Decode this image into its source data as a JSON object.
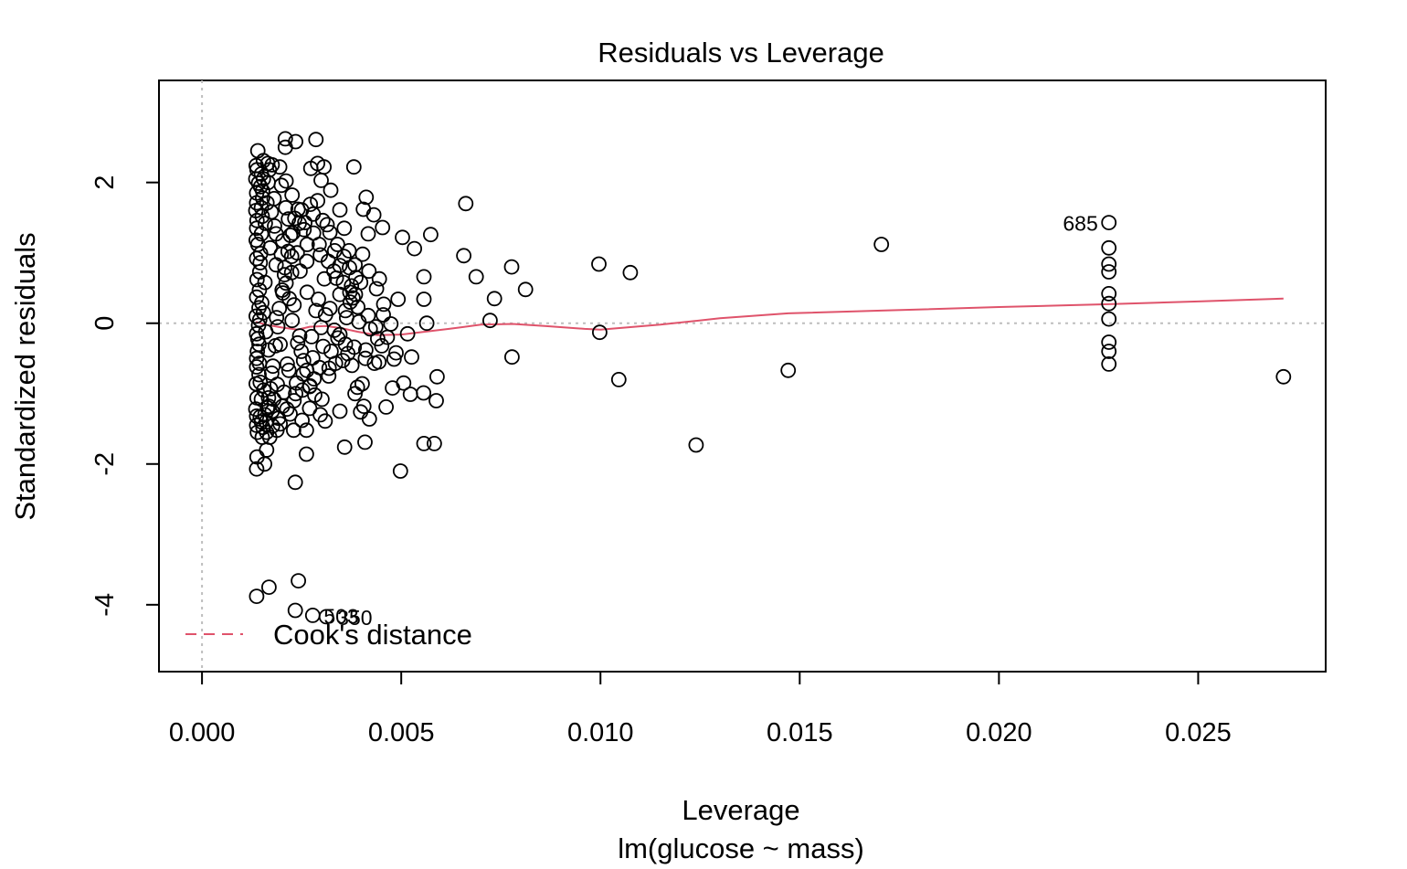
{
  "chart_data": {
    "type": "scatter",
    "title": "Residuals vs Leverage",
    "xlabel": "Leverage",
    "sub_xlabel": "lm(glucose ~ mass)",
    "ylabel": "Standardized residuals",
    "xlim": [
      -0.00108,
      0.0282
    ],
    "ylim": [
      -4.95,
      3.45
    ],
    "xticks": [
      0,
      0.005,
      0.01,
      0.015,
      0.02,
      0.025
    ],
    "xtick_labels": [
      "0.000",
      "0.005",
      "0.010",
      "0.015",
      "0.020",
      "0.025"
    ],
    "yticks": [
      -4,
      -2,
      0,
      2
    ],
    "ytick_labels": [
      "-4",
      "-2",
      "0",
      "2"
    ],
    "reference_lines": {
      "x": 0,
      "y": 0
    },
    "legend": {
      "position": "bottom-left",
      "label": "Cook's distance",
      "color": "#DF536B"
    },
    "colors": {
      "points": "#000000",
      "smoother": "#DF536B",
      "reference": "#BEBEBE"
    },
    "points": [
      [
        0.00137,
        -3.88
      ],
      [
        0.00168,
        -3.75
      ],
      [
        0.00242,
        -3.66
      ],
      [
        0.00234,
        -4.08
      ],
      [
        0.00278,
        -4.15
      ],
      [
        0.00312,
        -4.17
      ],
      [
        0.00262,
        -1.86
      ],
      [
        0.00234,
        -2.26
      ],
      [
        0.00498,
        -2.1
      ],
      [
        0.00137,
        -2.07
      ],
      [
        0.00157,
        -2.0
      ],
      [
        0.00138,
        -1.9
      ],
      [
        0.00162,
        -1.8
      ],
      [
        0.00358,
        -1.76
      ],
      [
        0.00409,
        -1.69
      ],
      [
        0.00557,
        -1.71
      ],
      [
        0.00583,
        -1.71
      ],
      [
        0.0124,
        -1.73
      ],
      [
        0.00778,
        -0.48
      ],
      [
        0.00998,
        -0.13
      ],
      [
        0.01046,
        -0.8
      ],
      [
        0.01471,
        -0.67
      ],
      [
        0.02714,
        -0.76
      ],
      [
        0.00723,
        0.04
      ],
      [
        0.00734,
        0.35
      ],
      [
        0.00688,
        0.66
      ],
      [
        0.00657,
        0.96
      ],
      [
        0.00777,
        0.8
      ],
      [
        0.00812,
        0.48
      ],
      [
        0.00996,
        0.84
      ],
      [
        0.01075,
        0.72
      ],
      [
        0.00662,
        1.7
      ],
      [
        0.00574,
        1.26
      ],
      [
        0.01705,
        1.12
      ],
      [
        0.02276,
        1.43
      ],
      [
        0.02276,
        1.07
      ],
      [
        0.02276,
        0.84
      ],
      [
        0.02276,
        0.73
      ],
      [
        0.02276,
        0.42
      ],
      [
        0.02276,
        0.28
      ],
      [
        0.02276,
        0.06
      ],
      [
        0.02276,
        -0.27
      ],
      [
        0.02276,
        -0.4
      ],
      [
        0.02276,
        -0.58
      ],
      [
        0.00564,
        0.0
      ],
      [
        0.00557,
        0.34
      ],
      [
        0.00557,
        0.66
      ],
      [
        0.00533,
        1.06
      ],
      [
        0.00503,
        1.22
      ],
      [
        0.00516,
        -0.15
      ],
      [
        0.00526,
        -0.48
      ],
      [
        0.00506,
        -0.85
      ],
      [
        0.00523,
        -1.01
      ],
      [
        0.00556,
        -0.99
      ],
      [
        0.0059,
        -0.76
      ],
      [
        0.00588,
        -1.1
      ],
      [
        0.00462,
        -1.19
      ],
      [
        0.00433,
        -0.57
      ],
      [
        0.00478,
        -0.92
      ],
      [
        0.00492,
        0.34
      ],
      [
        0.00445,
        0.63
      ],
      [
        0.00453,
        1.36
      ],
      [
        0.00431,
        1.54
      ],
      [
        0.00417,
        1.27
      ],
      [
        0.00412,
        1.79
      ],
      [
        0.00405,
        1.62
      ],
      [
        0.00402,
        -0.86
      ],
      [
        0.00398,
        -1.26
      ],
      [
        0.0042,
        -1.36
      ],
      [
        0.00406,
        -1.18
      ],
      [
        0.00384,
        -1.0
      ],
      [
        0.00346,
        1.61
      ],
      [
        0.00323,
        1.89
      ],
      [
        0.00357,
        1.35
      ],
      [
        0.00381,
        2.22
      ],
      [
        0.00333,
        1.03
      ],
      [
        0.00294,
        1.12
      ],
      [
        0.00299,
        2.03
      ],
      [
        0.00306,
        2.22
      ],
      [
        0.0029,
        2.27
      ],
      [
        0.00273,
        2.2
      ],
      [
        0.00286,
        2.61
      ],
      [
        0.00235,
        2.58
      ],
      [
        0.00209,
        2.62
      ],
      [
        0.00209,
        2.5
      ],
      [
        0.0029,
        1.74
      ],
      [
        0.00272,
        1.69
      ],
      [
        0.0025,
        1.61
      ],
      [
        0.00314,
        1.4
      ],
      [
        0.00346,
        0.82
      ],
      [
        0.00356,
        0.95
      ],
      [
        0.00375,
        0.53
      ],
      [
        0.00386,
        0.65
      ],
      [
        0.00372,
        0.3
      ],
      [
        0.00394,
        0.02
      ],
      [
        0.0036,
        -0.3
      ],
      [
        0.00376,
        -0.6
      ],
      [
        0.0039,
        -0.91
      ],
      [
        0.00346,
        -1.25
      ],
      [
        0.00309,
        -1.39
      ],
      [
        0.00297,
        -1.3
      ],
      [
        0.0027,
        -1.21
      ],
      [
        0.00251,
        -1.38
      ],
      [
        0.00262,
        -1.52
      ],
      [
        0.0023,
        -1.52
      ],
      [
        0.00221,
        -1.29
      ],
      [
        0.00196,
        -1.43
      ],
      [
        0.00188,
        -1.52
      ],
      [
        0.0017,
        -1.62
      ],
      [
        0.00151,
        -1.62
      ],
      [
        0.00161,
        -1.4
      ],
      [
        0.00176,
        -1.25
      ],
      [
        0.00202,
        -1.18
      ],
      [
        0.00231,
        -1.1
      ],
      [
        0.00252,
        -0.95
      ],
      [
        0.00271,
        -0.89
      ],
      [
        0.00281,
        -0.79
      ],
      [
        0.00318,
        -0.75
      ],
      [
        0.00335,
        -0.57
      ],
      [
        0.00366,
        -0.43
      ],
      [
        0.00411,
        -0.38
      ],
      [
        0.00441,
        -0.22
      ],
      [
        0.00465,
        -0.2
      ],
      [
        0.00487,
        -0.42
      ],
      [
        0.00444,
        -0.55
      ],
      [
        0.00346,
        -0.16
      ],
      [
        0.0031,
        0.12
      ],
      [
        0.00292,
        0.34
      ],
      [
        0.00307,
        0.63
      ],
      [
        0.00331,
        0.74
      ],
      [
        0.00263,
        0.88
      ],
      [
        0.00239,
        1.0
      ],
      [
        0.00228,
        1.28
      ],
      [
        0.00217,
        1.48
      ],
      [
        0.00199,
        1.96
      ],
      [
        0.00169,
        2.18
      ],
      [
        0.00154,
        2.31
      ],
      [
        0.0014,
        2.45
      ],
      [
        0.00138,
        2.18
      ],
      [
        0.00152,
        1.88
      ],
      [
        0.00181,
        1.77
      ],
      [
        0.0021,
        1.64
      ],
      [
        0.00244,
        1.42
      ],
      [
        0.00264,
        1.12
      ],
      [
        0.00225,
        0.72
      ],
      [
        0.00203,
        0.43
      ],
      [
        0.00187,
        0.08
      ],
      [
        0.00196,
        -0.3
      ],
      [
        0.00214,
        -0.58
      ],
      [
        0.00237,
        -0.85
      ],
      [
        0.00206,
        -0.98
      ],
      [
        0.0018,
        -1.08
      ],
      [
        0.00155,
        -0.95
      ],
      [
        0.00143,
        -0.73
      ],
      [
        0.00137,
        -0.5
      ],
      [
        0.0014,
        -0.22
      ],
      [
        0.00145,
        0.05
      ],
      [
        0.0015,
        0.29
      ],
      [
        0.00158,
        0.58
      ],
      [
        0.00146,
        0.86
      ],
      [
        0.0014,
        1.12
      ],
      [
        0.00137,
        1.35
      ],
      [
        0.00135,
        1.6
      ],
      [
        0.00137,
        1.85
      ],
      [
        0.00135,
        2.05
      ],
      [
        0.00135,
        -1.22
      ],
      [
        0.00137,
        -1.45
      ],
      [
        0.00146,
        -1.33
      ],
      [
        0.00168,
        -1.18
      ],
      [
        0.00189,
        -0.87
      ],
      [
        0.00218,
        -0.67
      ],
      [
        0.00249,
        -0.4
      ],
      [
        0.00275,
        -0.19
      ],
      [
        0.00299,
        -0.06
      ],
      [
        0.00321,
        0.21
      ],
      [
        0.00346,
        0.41
      ],
      [
        0.00371,
        0.44
      ],
      [
        0.00391,
        0.23
      ],
      [
        0.00422,
        -0.08
      ],
      [
        0.00451,
        -0.32
      ],
      [
        0.00482,
        -0.51
      ],
      [
        0.0041,
        -0.5
      ],
      [
        0.00382,
        -0.34
      ],
      [
        0.00353,
        -0.53
      ],
      [
        0.00324,
        -0.4
      ],
      [
        0.00295,
        -0.63
      ],
      [
        0.00263,
        -0.67
      ],
      [
        0.00245,
        -0.18
      ],
      [
        0.00231,
        0.26
      ],
      [
        0.00211,
        0.57
      ],
      [
        0.00186,
        0.83
      ],
      [
        0.00171,
        1.07
      ],
      [
        0.00159,
        1.42
      ],
      [
        0.00149,
        1.64
      ],
      [
        0.00142,
        1.99
      ],
      [
        0.00136,
        2.24
      ],
      [
        0.00149,
        2.12
      ],
      [
        0.00166,
        2.0
      ],
      [
        0.00174,
        1.58
      ],
      [
        0.00186,
        1.27
      ],
      [
        0.00199,
        0.98
      ],
      [
        0.00207,
        0.69
      ],
      [
        0.00219,
        0.35
      ],
      [
        0.00226,
        0.04
      ],
      [
        0.0024,
        -0.28
      ],
      [
        0.00255,
        -0.53
      ],
      [
        0.0027,
        -0.9
      ],
      [
        0.00283,
        -1.02
      ],
      [
        0.00301,
        -1.08
      ],
      [
        0.00319,
        -0.64
      ],
      [
        0.00341,
        -0.21
      ],
      [
        0.00363,
        0.08
      ],
      [
        0.00379,
        0.36
      ],
      [
        0.00398,
        0.58
      ],
      [
        0.00417,
        0.11
      ],
      [
        0.00436,
        -0.05
      ],
      [
        0.00455,
        0.12
      ],
      [
        0.00474,
        -0.01
      ],
      [
        0.00286,
        0.18
      ],
      [
        0.00264,
        0.44
      ],
      [
        0.00246,
        0.74
      ],
      [
        0.00225,
        0.95
      ],
      [
        0.00203,
        1.17
      ],
      [
        0.00182,
        1.38
      ],
      [
        0.00163,
        1.71
      ],
      [
        0.00147,
        1.94
      ],
      [
        0.00137,
        1.71
      ],
      [
        0.00138,
        1.46
      ],
      [
        0.00136,
        1.18
      ],
      [
        0.00137,
        0.92
      ],
      [
        0.00138,
        0.62
      ],
      [
        0.00137,
        0.37
      ],
      [
        0.00136,
        0.1
      ],
      [
        0.00137,
        -0.15
      ],
      [
        0.00139,
        -0.4
      ],
      [
        0.00137,
        -0.62
      ],
      [
        0.00136,
        -0.86
      ],
      [
        0.00138,
        -1.06
      ],
      [
        0.00137,
        -1.32
      ],
      [
        0.00139,
        -1.55
      ],
      [
        0.00153,
        -1.48
      ],
      [
        0.00164,
        -1.2
      ],
      [
        0.00172,
        -0.93
      ],
      [
        0.00178,
        -0.61
      ],
      [
        0.00184,
        -0.32
      ],
      [
        0.0019,
        -0.05
      ],
      [
        0.00194,
        0.21
      ],
      [
        0.00201,
        0.47
      ],
      [
        0.00208,
        0.79
      ],
      [
        0.00216,
        1.02
      ],
      [
        0.00222,
        1.25
      ],
      [
        0.00233,
        1.49
      ],
      [
        0.00256,
        1.33
      ],
      [
        0.00279,
        1.55
      ],
      [
        0.00303,
        1.46
      ],
      [
        0.00321,
        1.29
      ],
      [
        0.0034,
        1.12
      ],
      [
        0.00369,
        1.03
      ],
      [
        0.00384,
        0.83
      ],
      [
        0.00403,
        0.98
      ],
      [
        0.00419,
        0.74
      ],
      [
        0.00438,
        0.49
      ],
      [
        0.00456,
        0.27
      ],
      [
        0.00154,
        0.15
      ],
      [
        0.0016,
        -0.12
      ],
      [
        0.00167,
        -0.38
      ],
      [
        0.00175,
        -0.71
      ],
      [
        0.00167,
        -1.06
      ],
      [
        0.00158,
        -1.3
      ],
      [
        0.00149,
        -1.08
      ],
      [
        0.00146,
        -0.84
      ],
      [
        0.00144,
        -0.57
      ],
      [
        0.00143,
        -0.3
      ],
      [
        0.00142,
        -0.03
      ],
      [
        0.00143,
        0.22
      ],
      [
        0.00144,
        0.47
      ],
      [
        0.00145,
        0.73
      ],
      [
        0.00147,
        0.99
      ],
      [
        0.00149,
        1.27
      ],
      [
        0.00151,
        1.52
      ],
      [
        0.00152,
        1.78
      ],
      [
        0.00154,
        2.05
      ],
      [
        0.00165,
        2.27
      ],
      [
        0.00176,
        2.25
      ],
      [
        0.00195,
        2.22
      ],
      [
        0.00211,
        2.02
      ],
      [
        0.00226,
        1.82
      ],
      [
        0.00241,
        1.62
      ],
      [
        0.00258,
        1.43
      ],
      [
        0.0028,
        1.28
      ],
      [
        0.00297,
        0.97
      ],
      [
        0.00317,
        0.88
      ],
      [
        0.00337,
        0.64
      ],
      [
        0.00355,
        0.58
      ],
      [
        0.0037,
        0.79
      ],
      [
        0.00385,
        0.41
      ],
      [
        0.0036,
        0.18
      ],
      [
        0.00332,
        -0.1
      ],
      [
        0.00304,
        -0.33
      ],
      [
        0.00278,
        -0.49
      ],
      [
        0.00254,
        -0.72
      ],
      [
        0.00235,
        -1.0
      ],
      [
        0.00213,
        -1.22
      ],
      [
        0.00192,
        -1.35
      ],
      [
        0.00177,
        -1.46
      ],
      [
        0.00162,
        -1.55
      ],
      [
        0.00149,
        -1.4
      ]
    ],
    "labeled_points": [
      {
        "label": "685",
        "x": 0.02276,
        "y": 1.43,
        "side": "left"
      },
      {
        "label": "350",
        "x": 0.00312,
        "y": -4.17,
        "side": "right"
      },
      {
        "label": "503",
        "x": 0.00278,
        "y": -4.15,
        "side": "right"
      }
    ],
    "smoother": [
      [
        0.00135,
        0.02
      ],
      [
        0.0016,
        -0.02
      ],
      [
        0.002,
        -0.06
      ],
      [
        0.0024,
        -0.09
      ],
      [
        0.0027,
        -0.05
      ],
      [
        0.0031,
        -0.04
      ],
      [
        0.0035,
        -0.07
      ],
      [
        0.0039,
        -0.12
      ],
      [
        0.0044,
        -0.17
      ],
      [
        0.005,
        -0.16
      ],
      [
        0.0056,
        -0.12
      ],
      [
        0.0062,
        -0.08
      ],
      [
        0.007,
        -0.02
      ],
      [
        0.0078,
        -0.01
      ],
      [
        0.0086,
        -0.04
      ],
      [
        0.0096,
        -0.08
      ],
      [
        0.01,
        -0.09
      ],
      [
        0.0115,
        -0.02
      ],
      [
        0.013,
        0.07
      ],
      [
        0.01471,
        0.14
      ],
      [
        0.01705,
        0.18
      ],
      [
        0.02,
        0.23
      ],
      [
        0.02276,
        0.27
      ],
      [
        0.025,
        0.31
      ],
      [
        0.02714,
        0.35
      ]
    ]
  }
}
